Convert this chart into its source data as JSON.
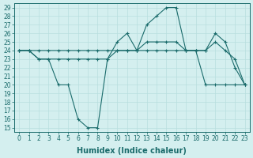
{
  "xlabel": "Humidex (Indice chaleur)",
  "ylabel": "",
  "x": [
    0,
    1,
    2,
    3,
    4,
    5,
    6,
    7,
    8,
    9,
    10,
    11,
    12,
    13,
    14,
    15,
    16,
    17,
    18,
    19,
    20,
    21,
    22,
    23
  ],
  "line1": [
    24,
    24,
    24,
    24,
    24,
    24,
    24,
    24,
    24,
    24,
    24,
    24,
    24,
    24,
    24,
    24,
    24,
    24,
    24,
    20,
    20,
    20,
    20,
    20
  ],
  "line2": [
    24,
    24,
    23,
    23,
    23,
    23,
    23,
    23,
    23,
    23,
    24,
    24,
    24,
    25,
    25,
    25,
    25,
    24,
    24,
    24,
    25,
    24,
    23,
    20
  ],
  "line3": [
    24,
    24,
    23,
    23,
    20,
    20,
    16,
    15,
    15,
    23,
    25,
    26,
    24,
    27,
    28,
    29,
    29,
    24,
    24,
    24,
    26,
    25,
    22,
    20
  ],
  "color": "#1a6b6b",
  "bg_color": "#d4efef",
  "grid_color": "#b8dede",
  "ylim_min": 14.5,
  "ylim_max": 29.5,
  "yticks": [
    15,
    16,
    17,
    18,
    19,
    20,
    21,
    22,
    23,
    24,
    25,
    26,
    27,
    28,
    29
  ],
  "xticks": [
    0,
    1,
    2,
    3,
    4,
    5,
    6,
    7,
    8,
    9,
    10,
    11,
    12,
    13,
    14,
    15,
    16,
    17,
    18,
    19,
    20,
    21,
    22,
    23
  ],
  "xlabel_fontsize": 7,
  "tick_fontsize": 5.5,
  "figsize": [
    3.2,
    2.0
  ],
  "dpi": 100
}
